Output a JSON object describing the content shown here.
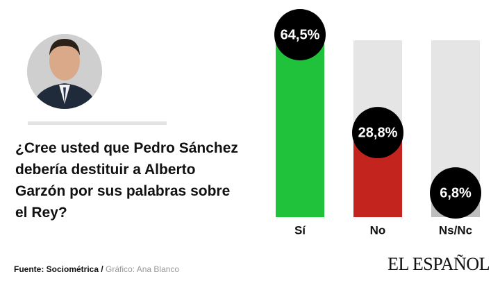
{
  "chart_data": {
    "type": "bar",
    "title": "¿Cree usted que Pedro Sánchez debería destituir a Alberto Garzón por sus palabras sobre el Rey?",
    "categories": [
      "Sí",
      "No",
      "Ns/Nc"
    ],
    "values": [
      64.5,
      28.8,
      6.8
    ],
    "value_labels": [
      "64,5%",
      "28,8%",
      "6,8%"
    ],
    "colors": [
      "#1fc23a",
      "#c3241d",
      "#bdbdbd"
    ],
    "ylim": [
      0,
      64.5
    ],
    "source": "Fuente: Sociométrica /",
    "credit": "Gráfico: Ana Blanco",
    "brand": "EL ESPAÑOL"
  }
}
